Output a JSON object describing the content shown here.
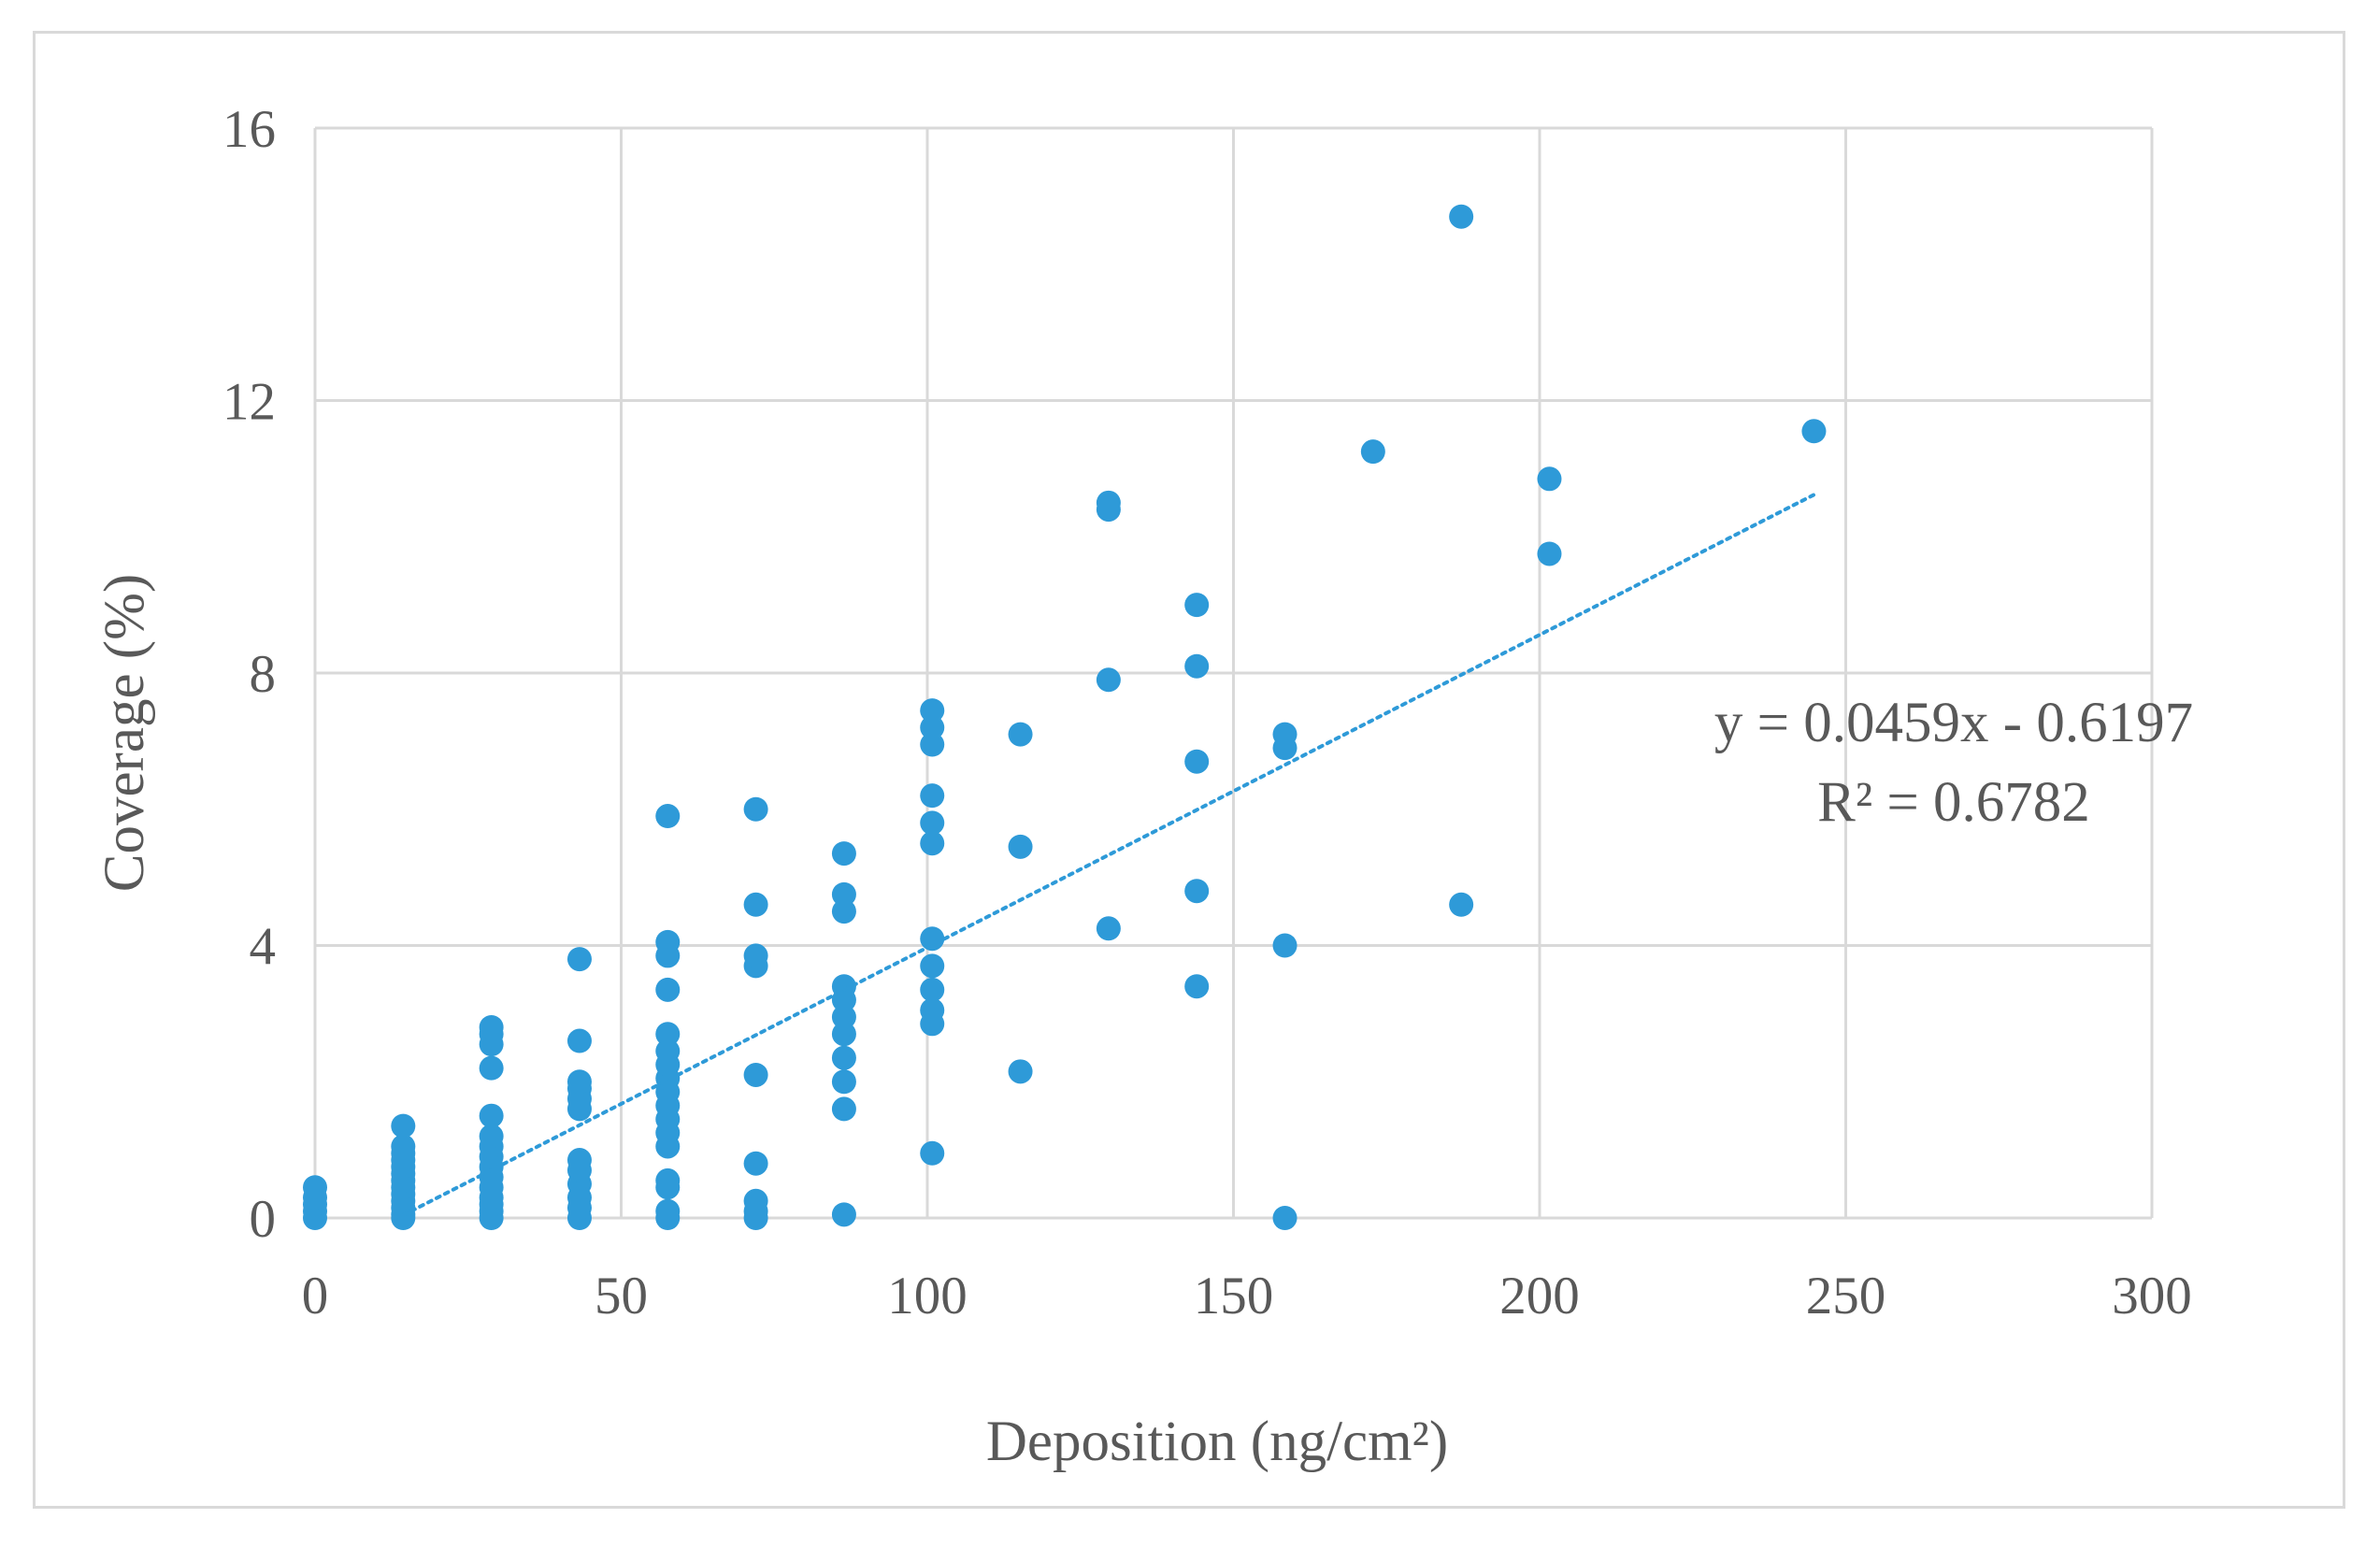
{
  "chart_data": {
    "type": "scatter",
    "title": "",
    "xlabel": "Deposition  (ng/cm²)",
    "ylabel": "Coverage (%)",
    "xlim": [
      0,
      300
    ],
    "ylim": [
      0,
      16
    ],
    "xticks": [
      0,
      50,
      100,
      150,
      200,
      250,
      300
    ],
    "yticks": [
      0,
      4,
      8,
      12,
      16
    ],
    "xtick_labels": [
      "0",
      "50",
      "100",
      "150",
      "200",
      "250",
      "300"
    ],
    "ytick_labels": [
      "0",
      "4",
      "8",
      "12",
      "16"
    ],
    "grid": true,
    "legend": false,
    "marker_color": "#2e9ad8",
    "trendline": {
      "type": "linear",
      "slope": 0.0459,
      "intercept": -0.6197,
      "x_range": [
        14.4,
        244.8
      ],
      "equation": "y = 0.0459x - 0.6197",
      "r_squared": "R² = 0.6782",
      "style": "dotted",
      "color": "#2e9ad8"
    },
    "series": [
      {
        "name": "Coverage",
        "points": [
          [
            0,
            0.0
          ],
          [
            0,
            0.1
          ],
          [
            0,
            0.2
          ],
          [
            0,
            0.3
          ],
          [
            0,
            0.45
          ],
          [
            14.4,
            0.0
          ],
          [
            14.4,
            0.05
          ],
          [
            14.4,
            0.15
          ],
          [
            14.4,
            0.25
          ],
          [
            14.4,
            0.35
          ],
          [
            14.4,
            0.45
          ],
          [
            14.4,
            0.55
          ],
          [
            14.4,
            0.65
          ],
          [
            14.4,
            0.75
          ],
          [
            14.4,
            0.85
          ],
          [
            14.4,
            0.95
          ],
          [
            14.4,
            1.05
          ],
          [
            14.4,
            1.35
          ],
          [
            28.8,
            0.0
          ],
          [
            28.8,
            0.1
          ],
          [
            28.8,
            0.2
          ],
          [
            28.8,
            0.3
          ],
          [
            28.8,
            0.45
          ],
          [
            28.8,
            0.6
          ],
          [
            28.8,
            0.75
          ],
          [
            28.8,
            0.9
          ],
          [
            28.8,
            1.05
          ],
          [
            28.8,
            1.2
          ],
          [
            28.8,
            1.5
          ],
          [
            28.8,
            2.2
          ],
          [
            28.8,
            2.55
          ],
          [
            28.8,
            2.7
          ],
          [
            28.8,
            2.8
          ],
          [
            43.2,
            0.0
          ],
          [
            43.2,
            0.15
          ],
          [
            43.2,
            0.3
          ],
          [
            43.2,
            0.5
          ],
          [
            43.2,
            0.7
          ],
          [
            43.2,
            0.85
          ],
          [
            43.2,
            1.6
          ],
          [
            43.2,
            1.75
          ],
          [
            43.2,
            1.9
          ],
          [
            43.2,
            2.0
          ],
          [
            43.2,
            2.6
          ],
          [
            43.2,
            3.8
          ],
          [
            57.6,
            0.0
          ],
          [
            57.6,
            0.1
          ],
          [
            57.6,
            0.45
          ],
          [
            57.6,
            0.55
          ],
          [
            57.6,
            1.05
          ],
          [
            57.6,
            1.25
          ],
          [
            57.6,
            1.45
          ],
          [
            57.6,
            1.65
          ],
          [
            57.6,
            1.85
          ],
          [
            57.6,
            2.05
          ],
          [
            57.6,
            2.25
          ],
          [
            57.6,
            2.45
          ],
          [
            57.6,
            2.7
          ],
          [
            57.6,
            3.35
          ],
          [
            57.6,
            3.85
          ],
          [
            57.6,
            4.05
          ],
          [
            57.6,
            5.9
          ],
          [
            72,
            0.0
          ],
          [
            72,
            0.1
          ],
          [
            72,
            0.25
          ],
          [
            72,
            0.8
          ],
          [
            72,
            2.1
          ],
          [
            72,
            3.7
          ],
          [
            72,
            3.85
          ],
          [
            72,
            4.6
          ],
          [
            72,
            6.0
          ],
          [
            86.4,
            0.05
          ],
          [
            86.4,
            1.6
          ],
          [
            86.4,
            2.0
          ],
          [
            86.4,
            2.35
          ],
          [
            86.4,
            2.7
          ],
          [
            86.4,
            2.95
          ],
          [
            86.4,
            3.2
          ],
          [
            86.4,
            3.4
          ],
          [
            86.4,
            4.5
          ],
          [
            86.4,
            4.75
          ],
          [
            86.4,
            5.35
          ],
          [
            100.8,
            0.95
          ],
          [
            100.8,
            2.85
          ],
          [
            100.8,
            3.05
          ],
          [
            100.8,
            3.35
          ],
          [
            100.8,
            3.7
          ],
          [
            100.8,
            4.1
          ],
          [
            100.8,
            5.5
          ],
          [
            100.8,
            5.8
          ],
          [
            100.8,
            6.2
          ],
          [
            100.8,
            6.95
          ],
          [
            100.8,
            7.2
          ],
          [
            100.8,
            7.45
          ],
          [
            115.2,
            2.15
          ],
          [
            115.2,
            5.45
          ],
          [
            115.2,
            7.1
          ],
          [
            129.6,
            4.25
          ],
          [
            129.6,
            7.9
          ],
          [
            129.6,
            10.4
          ],
          [
            129.6,
            10.5
          ],
          [
            144,
            3.4
          ],
          [
            144,
            4.8
          ],
          [
            144,
            6.7
          ],
          [
            144,
            8.1
          ],
          [
            144,
            9.0
          ],
          [
            158.4,
            0.0
          ],
          [
            158.4,
            4.0
          ],
          [
            158.4,
            6.9
          ],
          [
            158.4,
            7.1
          ],
          [
            172.8,
            11.25
          ],
          [
            187.2,
            4.6
          ],
          [
            187.2,
            14.7
          ],
          [
            201.6,
            9.75
          ],
          [
            201.6,
            10.85
          ],
          [
            244.8,
            11.55
          ]
        ]
      }
    ]
  }
}
